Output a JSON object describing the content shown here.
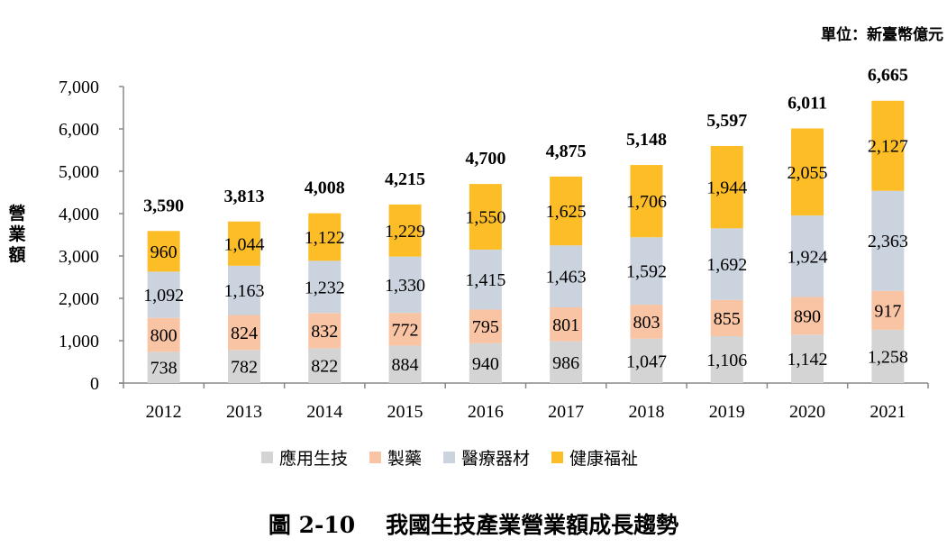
{
  "chart_data": {
    "type": "bar",
    "stacked": true,
    "title": "我國生技產業營業額成長趨勢",
    "figure_number": "圖 2-10",
    "unit": "單位：新臺幣億元",
    "xlabel": "",
    "ylabel": "營業額",
    "ylim": [
      0,
      7000
    ],
    "yticks": [
      "0",
      "1,000",
      "2,000",
      "3,000",
      "4,000",
      "5,000",
      "6,000",
      "7,000"
    ],
    "categories": [
      "2012",
      "2013",
      "2014",
      "2015",
      "2016",
      "2017",
      "2018",
      "2019",
      "2020",
      "2021"
    ],
    "series": [
      {
        "name": "應用生技",
        "color": "#d4d4d4",
        "values": [
          738,
          782,
          822,
          884,
          940,
          986,
          1047,
          1106,
          1142,
          1258
        ]
      },
      {
        "name": "製藥",
        "color": "#f8c4a4",
        "values": [
          800,
          824,
          832,
          772,
          795,
          801,
          803,
          855,
          890,
          917
        ]
      },
      {
        "name": "醫療器材",
        "color": "#cbd3de",
        "values": [
          1092,
          1163,
          1232,
          1330,
          1415,
          1463,
          1592,
          1692,
          1924,
          2363
        ]
      },
      {
        "name": "健康福祉",
        "color": "#fcbd27",
        "values": [
          960,
          1044,
          1122,
          1229,
          1550,
          1625,
          1706,
          1944,
          2055,
          2127
        ]
      }
    ],
    "totals": [
      3590,
      3813,
      4008,
      4215,
      4700,
      4875,
      5148,
      5597,
      6011,
      6665
    ],
    "legend_position": "bottom",
    "grid": false
  }
}
